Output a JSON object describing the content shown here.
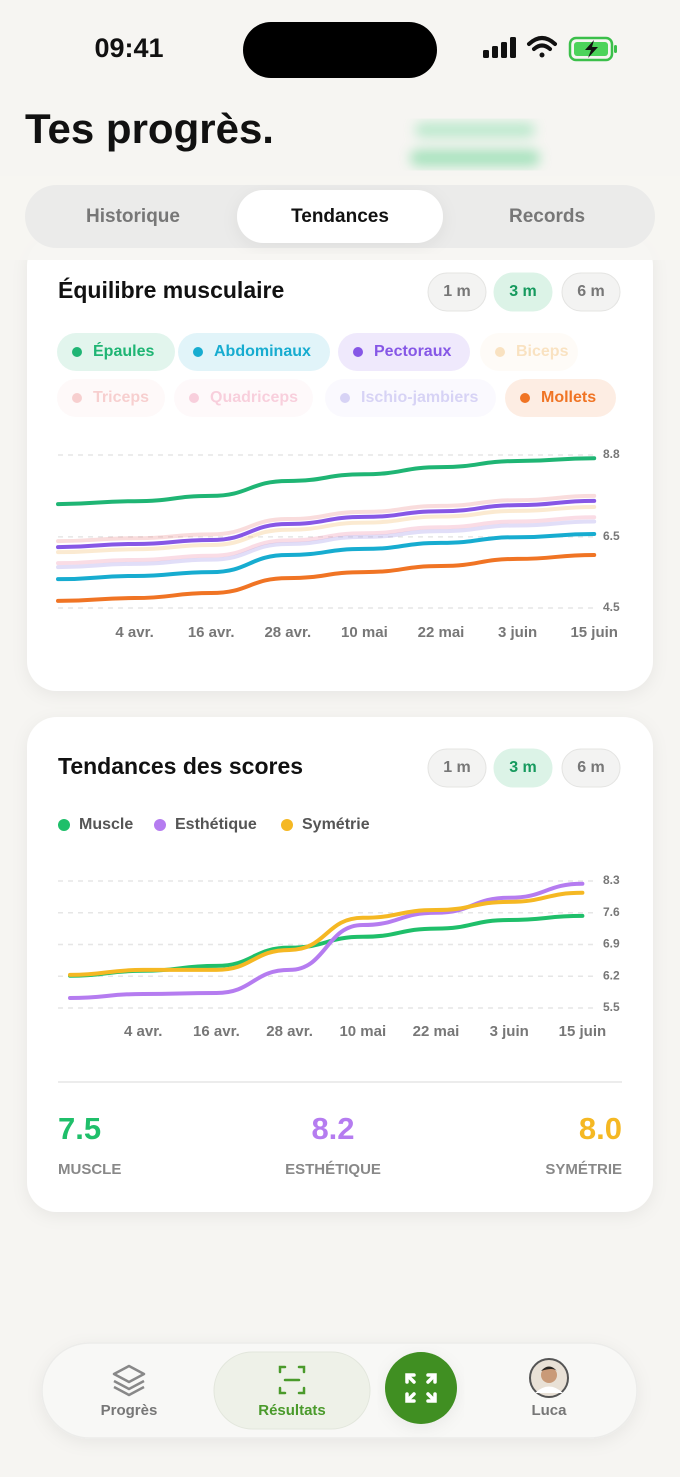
{
  "status_bar": {
    "time": "09:41"
  },
  "header": {
    "title": "Tes progrès."
  },
  "tabs": {
    "items": [
      "Historique",
      "Tendances",
      "Records"
    ],
    "active": 1
  },
  "chart_data": [
    {
      "type": "line",
      "title": "Équilibre musculaire",
      "periods": [
        "1 m",
        "3 m",
        "6 m"
      ],
      "active_period": 1,
      "categories": [
        null,
        "4 avr.",
        "16 avr.",
        "28 avr.",
        "10 mai",
        "22 mai",
        "3 juin",
        "15 juin"
      ],
      "series": [
        {
          "name": "Épaules",
          "color": "#1fb574",
          "active": true,
          "values": [
            7.42,
            7.5,
            7.65,
            8.07,
            8.26,
            8.46,
            8.63,
            8.71
          ]
        },
        {
          "name": "Abdominaux",
          "color": "#17acd0",
          "active": true,
          "values": [
            5.31,
            5.4,
            5.51,
            5.99,
            6.16,
            6.33,
            6.49,
            6.58
          ]
        },
        {
          "name": "Pectoraux",
          "color": "#8657e6",
          "active": true,
          "values": [
            6.21,
            6.3,
            6.41,
            6.86,
            7.06,
            7.22,
            7.39,
            7.51
          ]
        },
        {
          "name": "Biceps",
          "color": "#f2b866",
          "active": false,
          "values": [
            6.07,
            6.15,
            6.27,
            6.7,
            6.9,
            7.07,
            7.23,
            7.34
          ]
        },
        {
          "name": "Triceps",
          "color": "#ec8a8a",
          "active": false,
          "values": [
            6.38,
            6.46,
            6.57,
            7.0,
            7.2,
            7.37,
            7.53,
            7.65
          ]
        },
        {
          "name": "Quadriceps",
          "color": "#f08aaa",
          "active": false,
          "values": [
            5.76,
            5.85,
            5.97,
            6.4,
            6.6,
            6.77,
            6.93,
            7.05
          ]
        },
        {
          "name": "Ischio-jambiers",
          "color": "#9c92e8",
          "active": false,
          "values": [
            5.65,
            5.74,
            5.86,
            6.3,
            6.5,
            6.66,
            6.82,
            6.93
          ]
        },
        {
          "name": "Mollets",
          "color": "#f07424",
          "active": true,
          "values": [
            4.7,
            4.78,
            4.92,
            5.34,
            5.51,
            5.68,
            5.88,
            5.99
          ]
        }
      ],
      "ylim": [
        4.5,
        8.8
      ],
      "yticks": [
        4.5,
        6.5,
        8.8
      ],
      "grid": true
    },
    {
      "type": "line",
      "title": "Tendances des scores",
      "periods": [
        "1 m",
        "3 m",
        "6 m"
      ],
      "active_period": 1,
      "categories": [
        null,
        "4 avr.",
        "16 avr.",
        "28 avr.",
        "10 mai",
        "22 mai",
        "3 juin",
        "15 juin"
      ],
      "series": [
        {
          "name": "Muscle",
          "color": "#1fbf6a",
          "values": [
            6.21,
            6.32,
            6.43,
            6.83,
            7.07,
            7.25,
            7.44,
            7.53
          ]
        },
        {
          "name": "Esthétique",
          "color": "#b57cf0",
          "values": [
            5.72,
            5.81,
            5.83,
            6.34,
            7.33,
            7.6,
            7.93,
            8.24
          ]
        },
        {
          "name": "Symétrie",
          "color": "#f5b823",
          "values": [
            6.23,
            6.34,
            6.34,
            6.78,
            7.49,
            7.66,
            7.84,
            8.04
          ]
        }
      ],
      "ylim": [
        5.5,
        8.3
      ],
      "yticks": [
        5.5,
        6.2,
        6.9,
        7.6,
        8.3
      ],
      "grid": true,
      "summary": [
        {
          "value": "7.5",
          "label": "MUSCLE",
          "color": "#1fbf6a"
        },
        {
          "value": "8.2",
          "label": "ESTHÉTIQUE",
          "color": "#b57cf0"
        },
        {
          "value": "8.0",
          "label": "SYMÉTRIE",
          "color": "#f5b823"
        }
      ]
    }
  ],
  "nav": {
    "items": [
      "Progrès",
      "Résultats",
      "Luca"
    ],
    "active": 1
  }
}
